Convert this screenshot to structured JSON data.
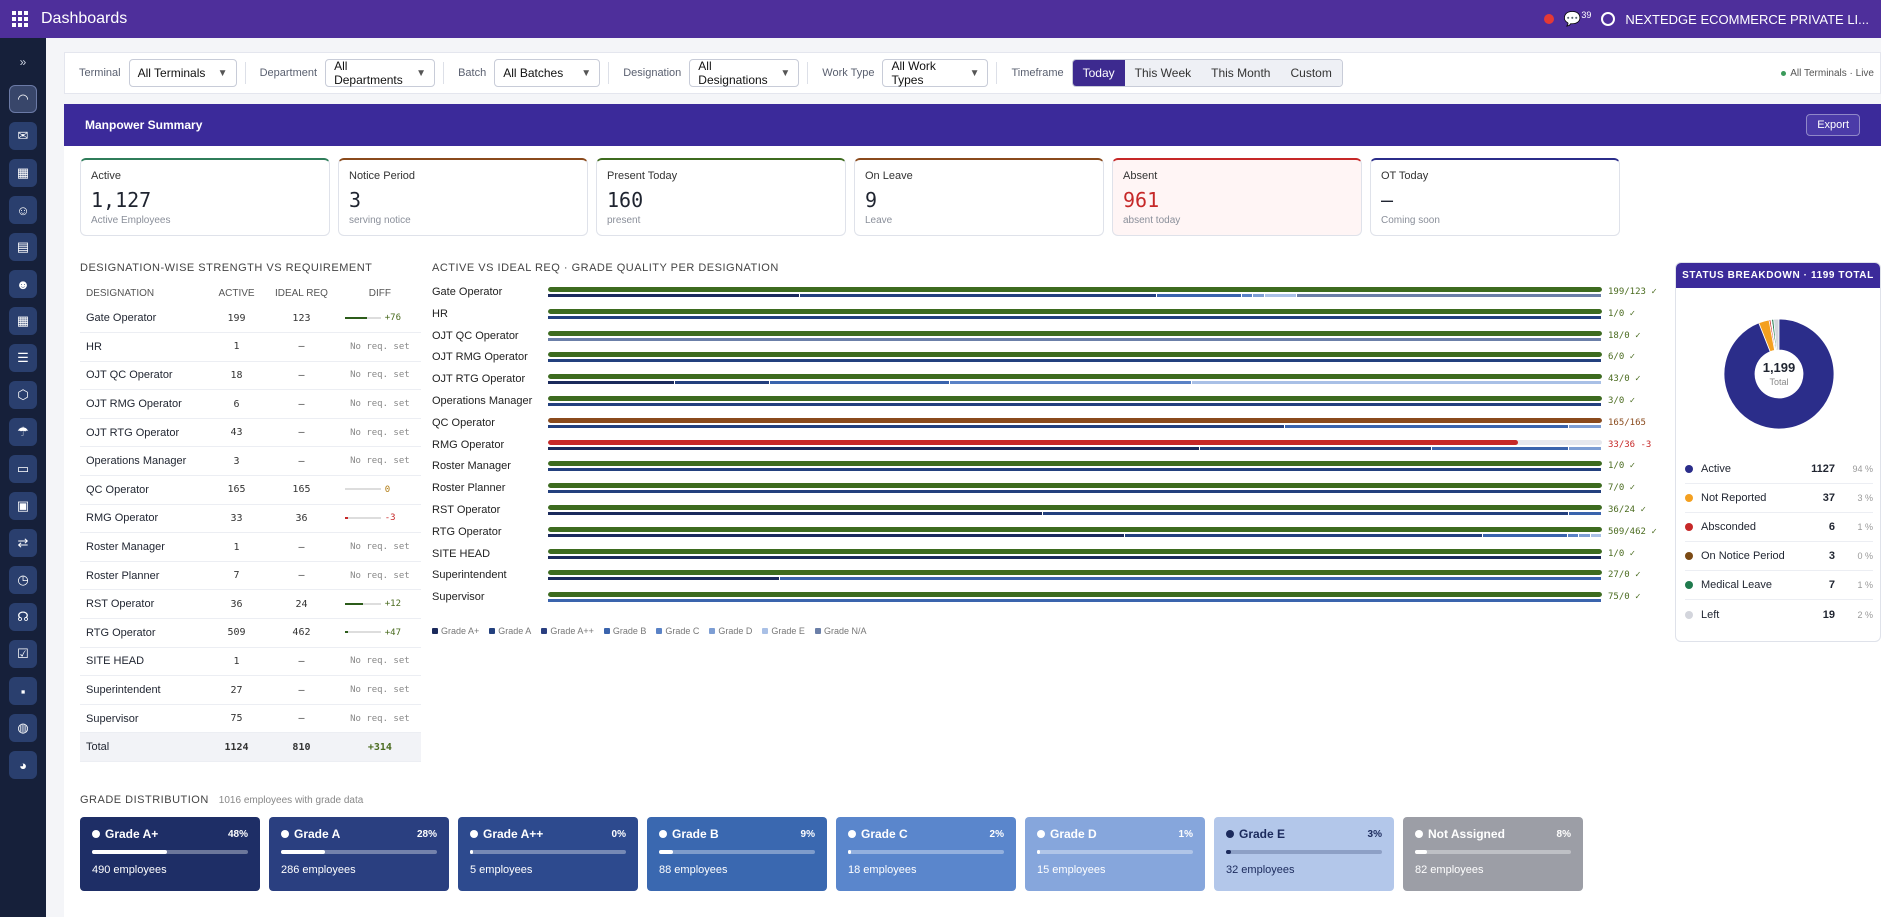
{
  "app": {
    "title": "Dashboards",
    "company": "NEXTEDGE ECOMMERCE PRIVATE LI...",
    "chat_count": "39"
  },
  "sidebar": {
    "toggle": "»",
    "icons": [
      "dashboard-icon",
      "mail-icon",
      "calendar-grid-icon",
      "team-icon",
      "document-icon",
      "user-group-icon",
      "calendar-icon",
      "list-icon",
      "box-icon",
      "umbrella-icon",
      "id-card-icon",
      "report-icon",
      "shuffle-icon",
      "clock-icon",
      "headset-icon",
      "checklist-icon",
      "profile-icon",
      "globe-icon",
      "pie-icon"
    ]
  },
  "filters": {
    "terminal_label": "Terminal",
    "terminal_value": "All Terminals",
    "department_label": "Department",
    "department_value": "All Departments",
    "batch_label": "Batch",
    "batch_value": "All Batches",
    "designation_label": "Designation",
    "designation_value": "All Designations",
    "worktype_label": "Work Type",
    "worktype_value": "All Work Types",
    "timeframe_label": "Timeframe",
    "timeframes": [
      "Today",
      "This Week",
      "This Month",
      "Custom"
    ],
    "live_text": "All Terminals · Live"
  },
  "summary": {
    "title": "Manpower Summary",
    "export": "Export"
  },
  "kpis": [
    {
      "label": "Active",
      "value": "1,127",
      "sub": "Active Employees",
      "color": "#2f7d5a"
    },
    {
      "label": "Notice Period",
      "value": "3",
      "sub": "serving notice",
      "color": "#8a4a1c"
    },
    {
      "label": "Present Today",
      "value": "160",
      "sub": "present",
      "color": "#3e6b1f"
    },
    {
      "label": "On Leave",
      "value": "9",
      "sub": "Leave",
      "color": "#8a4a1c"
    },
    {
      "label": "Absent",
      "value": "961",
      "sub": "absent today",
      "color": "#c62828"
    },
    {
      "label": "OT Today",
      "value": "—",
      "sub": "Coming soon",
      "color": "#2b2d8a"
    }
  ],
  "strength": {
    "title": "DESIGNATION-WISE STRENGTH VS REQUIREMENT",
    "headers": [
      "DESIGNATION",
      "ACTIVE",
      "IDEAL REQ",
      "DIFF"
    ],
    "rows": [
      {
        "name": "Gate Operator",
        "active": "199",
        "req": "123",
        "diff": "+76",
        "ratio": 0.62
      },
      {
        "name": "HR",
        "active": "1",
        "req": "—",
        "diff": "No req. set"
      },
      {
        "name": "OJT QC Operator",
        "active": "18",
        "req": "—",
        "diff": "No req. set"
      },
      {
        "name": "OJT RMG Operator",
        "active": "6",
        "req": "—",
        "diff": "No req. set"
      },
      {
        "name": "OJT RTG Operator",
        "active": "43",
        "req": "—",
        "diff": "No req. set"
      },
      {
        "name": "Operations Manager",
        "active": "3",
        "req": "—",
        "diff": "No req. set"
      },
      {
        "name": "QC Operator",
        "active": "165",
        "req": "165",
        "diff": "0",
        "ratio": 0
      },
      {
        "name": "RMG Operator",
        "active": "33",
        "req": "36",
        "diff": "-3",
        "ratio": 0.08
      },
      {
        "name": "Roster Manager",
        "active": "1",
        "req": "—",
        "diff": "No req. set"
      },
      {
        "name": "Roster Planner",
        "active": "7",
        "req": "—",
        "diff": "No req. set"
      },
      {
        "name": "RST Operator",
        "active": "36",
        "req": "24",
        "diff": "+12",
        "ratio": 0.5
      },
      {
        "name": "RTG Operator",
        "active": "509",
        "req": "462",
        "diff": "+47",
        "ratio": 0.1
      },
      {
        "name": "SITE HEAD",
        "active": "1",
        "req": "—",
        "diff": "No req. set"
      },
      {
        "name": "Superintendent",
        "active": "27",
        "req": "—",
        "diff": "No req. set"
      },
      {
        "name": "Supervisor",
        "active": "75",
        "req": "—",
        "diff": "No req. set"
      }
    ],
    "total": {
      "label": "Total",
      "active": "1124",
      "req": "810",
      "diff": "+314"
    }
  },
  "grade_quality": {
    "title": "ACTIVE VS IDEAL REQ · GRADE QUALITY PER DESIGNATION",
    "legend": [
      "Grade A+",
      "Grade A",
      "Grade A++",
      "Grade B",
      "Grade C",
      "Grade D",
      "Grade E",
      "Grade N/A"
    ],
    "legend_colors": [
      "#1b2a5c",
      "#23407e",
      "#2a3f80",
      "#3a64ad",
      "#5a82c6",
      "#7d9ed4",
      "#a9c0e6",
      "#6b7fa8"
    ],
    "rows": [
      {
        "name": "Gate Operator",
        "value": "199/123 ✓",
        "fill": 1.0,
        "color": "#3d6b1f",
        "vcolor": "#4a6b1f",
        "grades": [
          0.24,
          0.34,
          0.0,
          0.08,
          0.01,
          0.01,
          0.03,
          0.29
        ]
      },
      {
        "name": "HR",
        "value": "1/0 ✓",
        "fill": 1.0,
        "color": "#3d6b1f",
        "vcolor": "#4a6b1f",
        "grades": []
      },
      {
        "name": "OJT QC Operator",
        "value": "18/0 ✓",
        "fill": 1.0,
        "color": "#3d6b1f",
        "vcolor": "#4a6b1f",
        "grades": [
          0.0,
          0.0,
          0.0,
          0.0,
          0.0,
          0.0,
          0.0,
          1.0
        ]
      },
      {
        "name": "OJT RMG Operator",
        "value": "6/0 ✓",
        "fill": 1.0,
        "color": "#3d6b1f",
        "vcolor": "#4a6b1f",
        "grades": []
      },
      {
        "name": "OJT RTG Operator",
        "value": "43/0 ✓",
        "fill": 1.0,
        "color": "#3d6b1f",
        "vcolor": "#4a6b1f",
        "grades": [
          0.12,
          0.09,
          0.0,
          0.17,
          0.23,
          0.0,
          0.39,
          0.0
        ]
      },
      {
        "name": "Operations Manager",
        "value": "3/0 ✓",
        "fill": 1.0,
        "color": "#3d6b1f",
        "vcolor": "#4a6b1f",
        "grades": [
          0.0,
          1.0
        ]
      },
      {
        "name": "QC Operator",
        "value": "165/165",
        "fill": 1.0,
        "color": "#8a4a1c",
        "vcolor": "#8a4a1c",
        "grades": [
          0.0,
          0.7,
          0.0,
          0.27,
          0.0,
          0.03
        ]
      },
      {
        "name": "RMG Operator",
        "value": "33/36 -3",
        "fill": 0.92,
        "color": "#c62828",
        "vcolor": "#c62828",
        "grades": [
          0.62,
          0.22,
          0.0,
          0.13,
          0.0,
          0.03
        ]
      },
      {
        "name": "Roster Manager",
        "value": "1/0 ✓",
        "fill": 1.0,
        "color": "#3d6b1f",
        "vcolor": "#4a6b1f",
        "grades": [
          0.0,
          1.0
        ]
      },
      {
        "name": "Roster Planner",
        "value": "7/0 ✓",
        "fill": 1.0,
        "color": "#3d6b1f",
        "vcolor": "#4a6b1f",
        "grades": [
          0.0,
          1.0
        ]
      },
      {
        "name": "RST Operator",
        "value": "36/24 ✓",
        "fill": 1.0,
        "color": "#3d6b1f",
        "vcolor": "#4a6b1f",
        "grades": [
          0.47,
          0.5,
          0.0,
          0.03
        ]
      },
      {
        "name": "RTG Operator",
        "value": "509/462 ✓",
        "fill": 1.0,
        "color": "#3d6b1f",
        "vcolor": "#4a6b1f",
        "grades": [
          0.55,
          0.34,
          0.0,
          0.08,
          0.01,
          0.01,
          0.01
        ]
      },
      {
        "name": "SITE HEAD",
        "value": "1/0 ✓",
        "fill": 1.0,
        "color": "#3d6b1f",
        "vcolor": "#4a6b1f",
        "grades": [
          1.0
        ]
      },
      {
        "name": "Superintendent",
        "value": "27/0 ✓",
        "fill": 1.0,
        "color": "#3d6b1f",
        "vcolor": "#4a6b1f",
        "grades": [
          0.22,
          0.0,
          0.0,
          0.78
        ]
      },
      {
        "name": "Supervisor",
        "value": "75/0 ✓",
        "fill": 1.0,
        "color": "#3d6b1f",
        "vcolor": "#4a6b1f",
        "grades": [
          0.0,
          0.0,
          0.0,
          1.0
        ]
      }
    ]
  },
  "status": {
    "title": "STATUS BREAKDOWN · 1199 TOTAL",
    "center_value": "1,199",
    "center_label": "Total",
    "items": [
      {
        "name": "Active",
        "value": "1127",
        "pct": "94 %",
        "color": "#2b2d8a",
        "n": 1127
      },
      {
        "name": "Not Reported",
        "value": "37",
        "pct": "3 %",
        "color": "#f4a020",
        "n": 37
      },
      {
        "name": "Absconded",
        "value": "6",
        "pct": "1 %",
        "color": "#c62828",
        "n": 6
      },
      {
        "name": "On Notice Period",
        "value": "3",
        "pct": "0 %",
        "color": "#7b4a14",
        "n": 3
      },
      {
        "name": "Medical Leave",
        "value": "7",
        "pct": "1 %",
        "color": "#1f7a4d",
        "n": 7
      },
      {
        "name": "Left",
        "value": "19",
        "pct": "2 %",
        "color": "#d3d5dc",
        "n": 19
      }
    ]
  },
  "grade_distribution": {
    "title": "GRADE DISTRIBUTION",
    "subtitle": "1016 employees with grade data",
    "tiles": [
      {
        "name": "Grade A+",
        "pct": "48%",
        "frac": 0.48,
        "employees": "490 employees",
        "bg": "#1e2e66",
        "dot": "#ffffff"
      },
      {
        "name": "Grade A",
        "pct": "28%",
        "frac": 0.28,
        "employees": "286 employees",
        "bg": "#2a3f80",
        "dot": "#ffffff"
      },
      {
        "name": "Grade A++",
        "pct": "0%",
        "frac": 0.005,
        "employees": "5 employees",
        "bg": "#2d4a8e",
        "dot": "#ffffff"
      },
      {
        "name": "Grade B",
        "pct": "9%",
        "frac": 0.09,
        "employees": "88 employees",
        "bg": "#3a68b0",
        "dot": "#ffffff"
      },
      {
        "name": "Grade C",
        "pct": "2%",
        "frac": 0.02,
        "employees": "18 employees",
        "bg": "#5a86cc",
        "dot": "#ffffff"
      },
      {
        "name": "Grade D",
        "pct": "1%",
        "frac": 0.01,
        "employees": "15 employees",
        "bg": "#86a6dc",
        "dot": "#ffffff"
      },
      {
        "name": "Grade E",
        "pct": "3%",
        "frac": 0.03,
        "employees": "32 employees",
        "bg": "#b3c7ea",
        "dot": "#1b2a5c",
        "dark": true
      },
      {
        "name": "Not Assigned",
        "pct": "8%",
        "frac": 0.08,
        "employees": "82 employees",
        "bg": "#9c9ea6",
        "dot": "#ffffff"
      }
    ]
  }
}
